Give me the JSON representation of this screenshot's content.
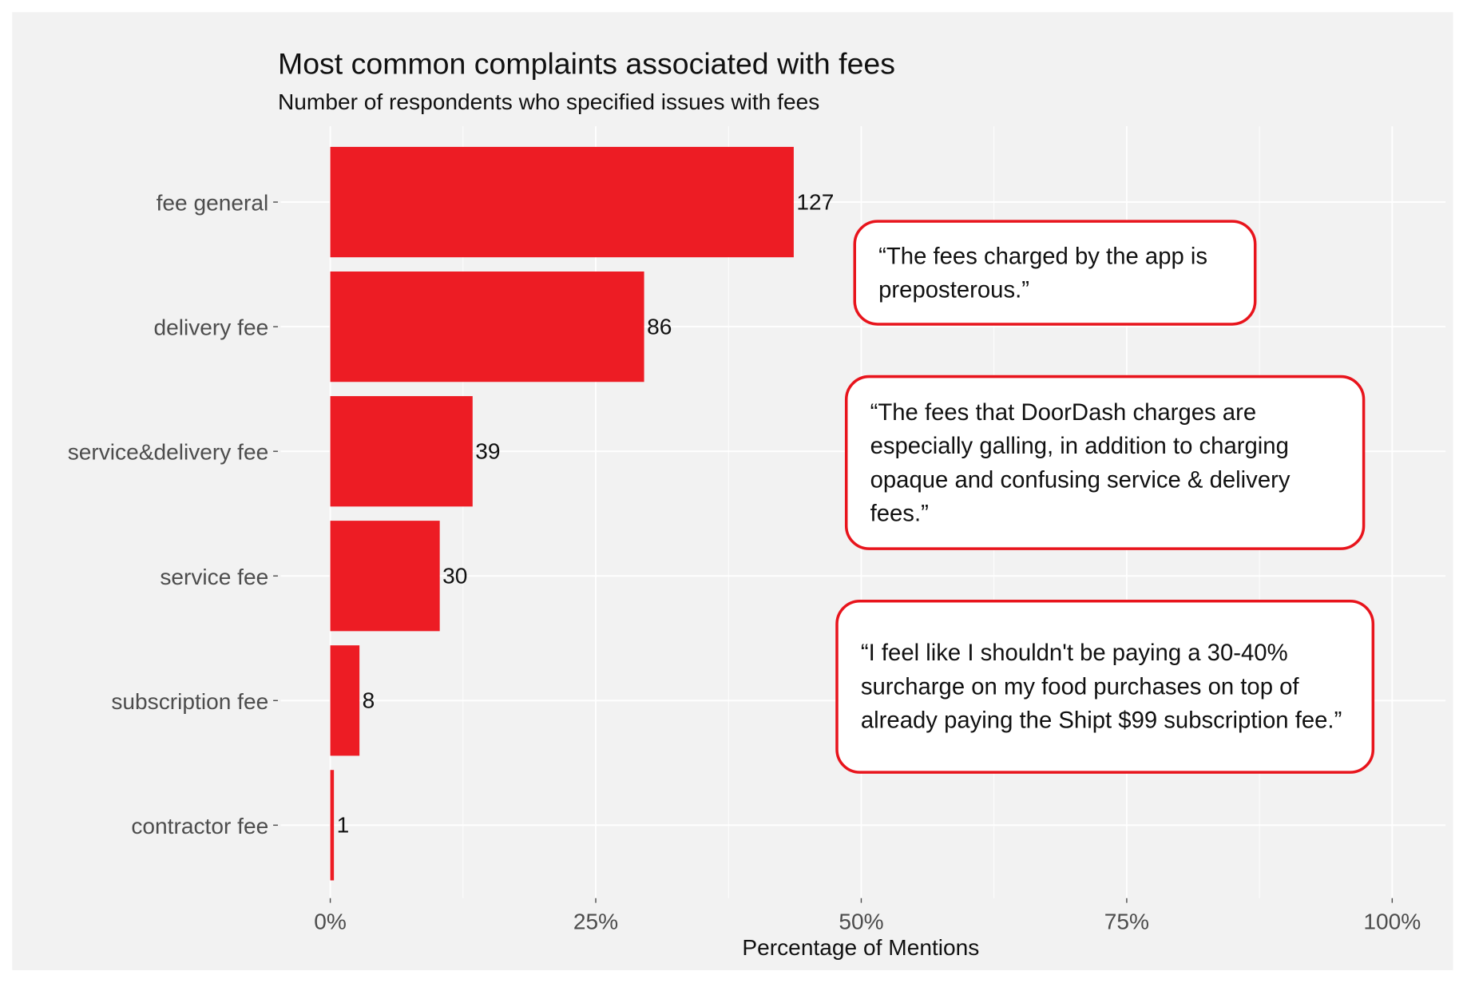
{
  "chart_data": {
    "type": "bar",
    "orientation": "horizontal",
    "title": "Most common complaints associated with fees",
    "subtitle": "Number of respondents who specified issues with fees",
    "xlabel": "Percentage of Mentions",
    "ylabel": "",
    "categories": [
      "fee general",
      "delivery fee",
      "service&delivery fee",
      "service fee",
      "subscription fee",
      "contractor fee"
    ],
    "values": [
      127,
      86,
      39,
      30,
      8,
      1
    ],
    "data_labels": [
      "127",
      "86",
      "39",
      "30",
      "8",
      "1"
    ],
    "x_scale": "percent of total mentions",
    "xlim": [
      0,
      100
    ],
    "x_ticks": [
      "0%",
      "25%",
      "50%",
      "75%",
      "100%"
    ],
    "grid": true,
    "bar_color": "#ed1c24",
    "background": "#f2f2f2"
  },
  "quotes": [
    "“The fees charged by the app is preposterous.”",
    "“The fees that DoorDash charges are especially galling, in addition to charging opaque and confusing service & delivery fees.”",
    "“I feel like I shouldn't be paying a 30-40% surcharge on my food purchases on top of already paying the Shipt $99 subscription fee.”"
  ],
  "quote_border_color": "#e8141c"
}
